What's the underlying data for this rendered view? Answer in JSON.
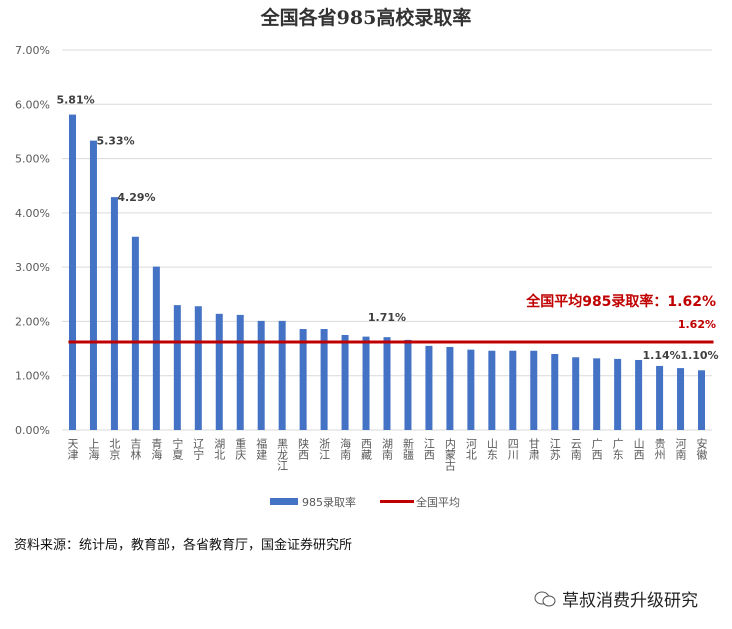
{
  "chart_data": {
    "type": "bar",
    "title": "全国各省985高校录取率",
    "categories": [
      "天津",
      "上海",
      "北京",
      "吉林",
      "青海",
      "宁夏",
      "辽宁",
      "湖北",
      "重庆",
      "福建",
      "黑龙江",
      "陕西",
      "浙江",
      "海南",
      "西藏",
      "湖南",
      "新疆",
      "江西",
      "内蒙古",
      "河北",
      "山东",
      "四川",
      "甘肃",
      "江苏",
      "云南",
      "广西",
      "广东",
      "山西",
      "贵州",
      "河南",
      "安徽"
    ],
    "series": [
      {
        "name": "985录取率",
        "type": "bar",
        "color": "#4472C4",
        "values": [
          5.81,
          5.33,
          4.29,
          3.56,
          3.01,
          2.3,
          2.28,
          2.14,
          2.12,
          2.01,
          2.01,
          1.86,
          1.86,
          1.75,
          1.72,
          1.71,
          1.66,
          1.55,
          1.53,
          1.48,
          1.46,
          1.46,
          1.46,
          1.4,
          1.34,
          1.32,
          1.31,
          1.29,
          1.18,
          1.14,
          1.1
        ]
      },
      {
        "name": "全国平均",
        "type": "line",
        "color": "#C00000",
        "value": 1.62
      }
    ],
    "data_labels": [
      {
        "index": 0,
        "text": "5.81%"
      },
      {
        "index": 1,
        "text": "5.33%"
      },
      {
        "index": 2,
        "text": "4.29%"
      },
      {
        "index": 15,
        "text": "1.71%"
      },
      {
        "index": 29,
        "text": "1.14%"
      },
      {
        "index": 30,
        "text": "1.10%"
      }
    ],
    "avg_label": "1.62%",
    "annotation": "全国平均985录取率：1.62%",
    "yticks": [
      "0.00%",
      "1.00%",
      "2.00%",
      "3.00%",
      "4.00%",
      "5.00%",
      "6.00%",
      "7.00%"
    ],
    "ylim": [
      0,
      7
    ],
    "grid": true,
    "legend": "bottom"
  },
  "source": "资料来源：统计局，教育部，各省教育厅，国金证券研究所",
  "watermark": "草叔消费升级研究"
}
